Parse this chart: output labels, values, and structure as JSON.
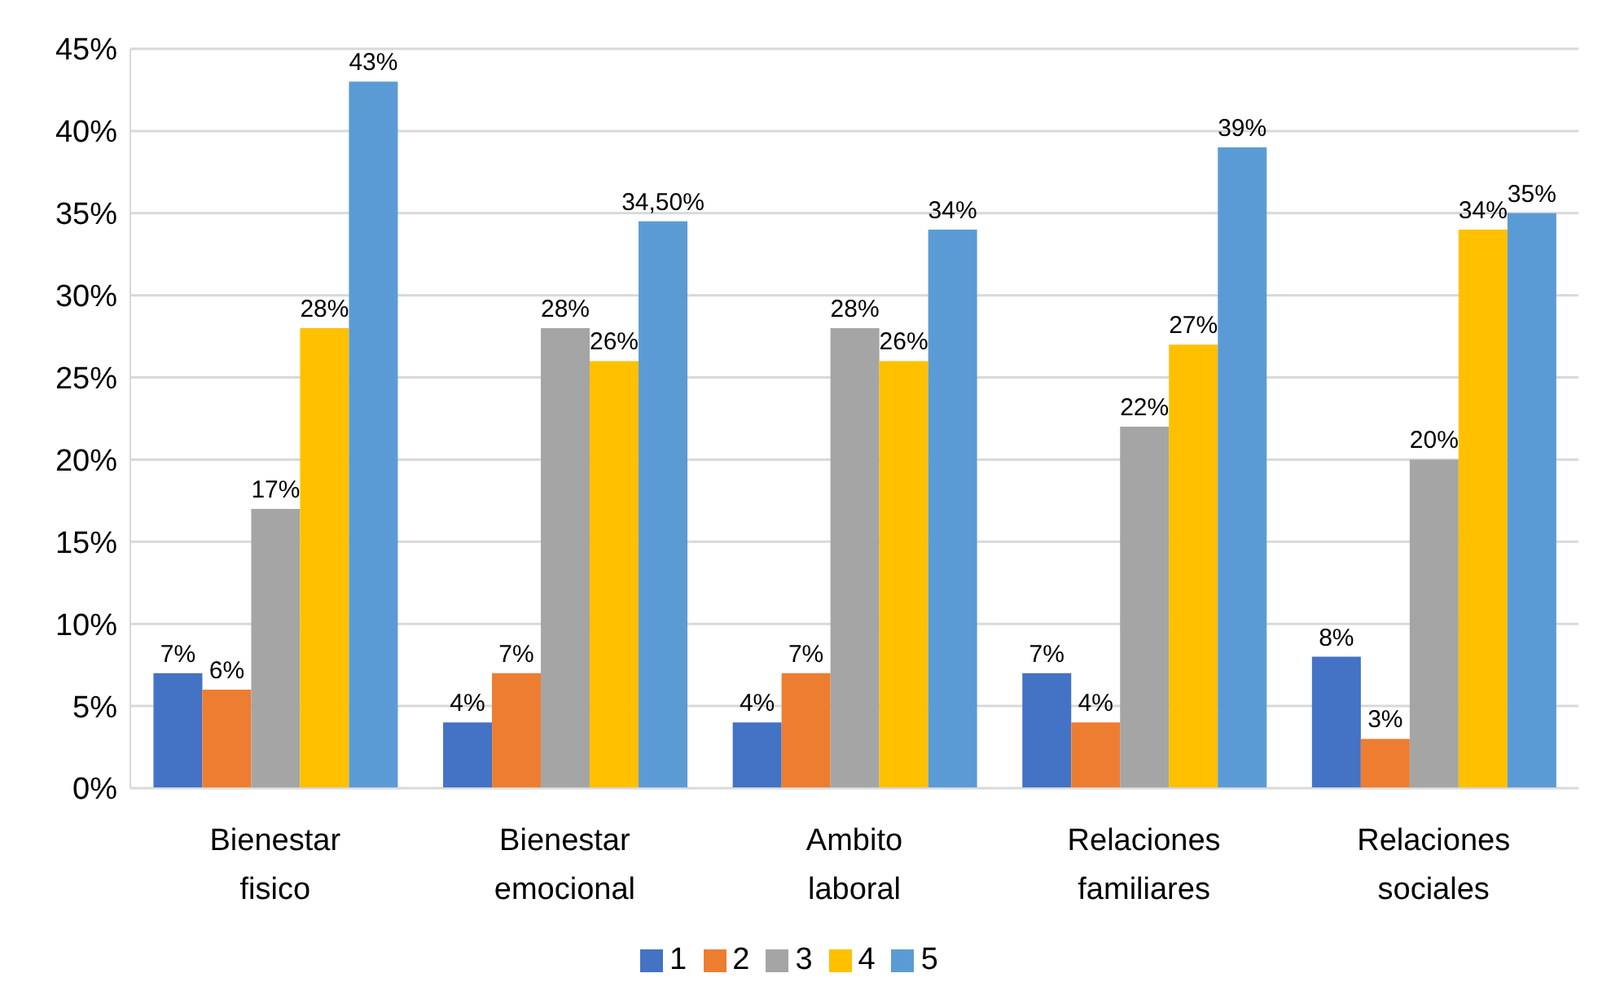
{
  "chart_data": {
    "type": "bar",
    "categories": [
      "Bienestar fisico",
      "Bienestar emocional",
      "Ambito laboral",
      "Relaciones familiares",
      "Relaciones sociales"
    ],
    "series": [
      {
        "name": "1",
        "color": "#4472c4",
        "values": [
          7,
          4,
          4,
          7,
          8
        ],
        "value_labels": [
          "7%",
          "4%",
          "4%",
          "7%",
          "8%"
        ]
      },
      {
        "name": "2",
        "color": "#ed7d31",
        "values": [
          6,
          7,
          7,
          4,
          3
        ],
        "value_labels": [
          "6%",
          "7%",
          "7%",
          "4%",
          "3%"
        ]
      },
      {
        "name": "3",
        "color": "#a5a5a5",
        "values": [
          17,
          28,
          28,
          22,
          20
        ],
        "value_labels": [
          "17%",
          "28%",
          "28%",
          "22%",
          "20%"
        ]
      },
      {
        "name": "4",
        "color": "#ffc000",
        "values": [
          28,
          26,
          26,
          27,
          34
        ],
        "value_labels": [
          "28%",
          "26%",
          "26%",
          "27%",
          "34%"
        ]
      },
      {
        "name": "5",
        "color": "#5b9bd5",
        "values": [
          43,
          34.5,
          34,
          39,
          35
        ],
        "value_labels": [
          "43%",
          "34,50%",
          "34%",
          "39%",
          "35%"
        ]
      }
    ],
    "ylim": [
      0,
      45
    ],
    "yticks": [
      {
        "value": 0,
        "label": "0%"
      },
      {
        "value": 5,
        "label": "5%"
      },
      {
        "value": 10,
        "label": "10%"
      },
      {
        "value": 15,
        "label": "15%"
      },
      {
        "value": 20,
        "label": "20%"
      },
      {
        "value": 25,
        "label": "25%"
      },
      {
        "value": 30,
        "label": "30%"
      },
      {
        "value": 35,
        "label": "35%"
      },
      {
        "value": 40,
        "label": "40%"
      },
      {
        "value": 45,
        "label": "45%"
      }
    ],
    "grid": "y",
    "legend": "bottom"
  }
}
